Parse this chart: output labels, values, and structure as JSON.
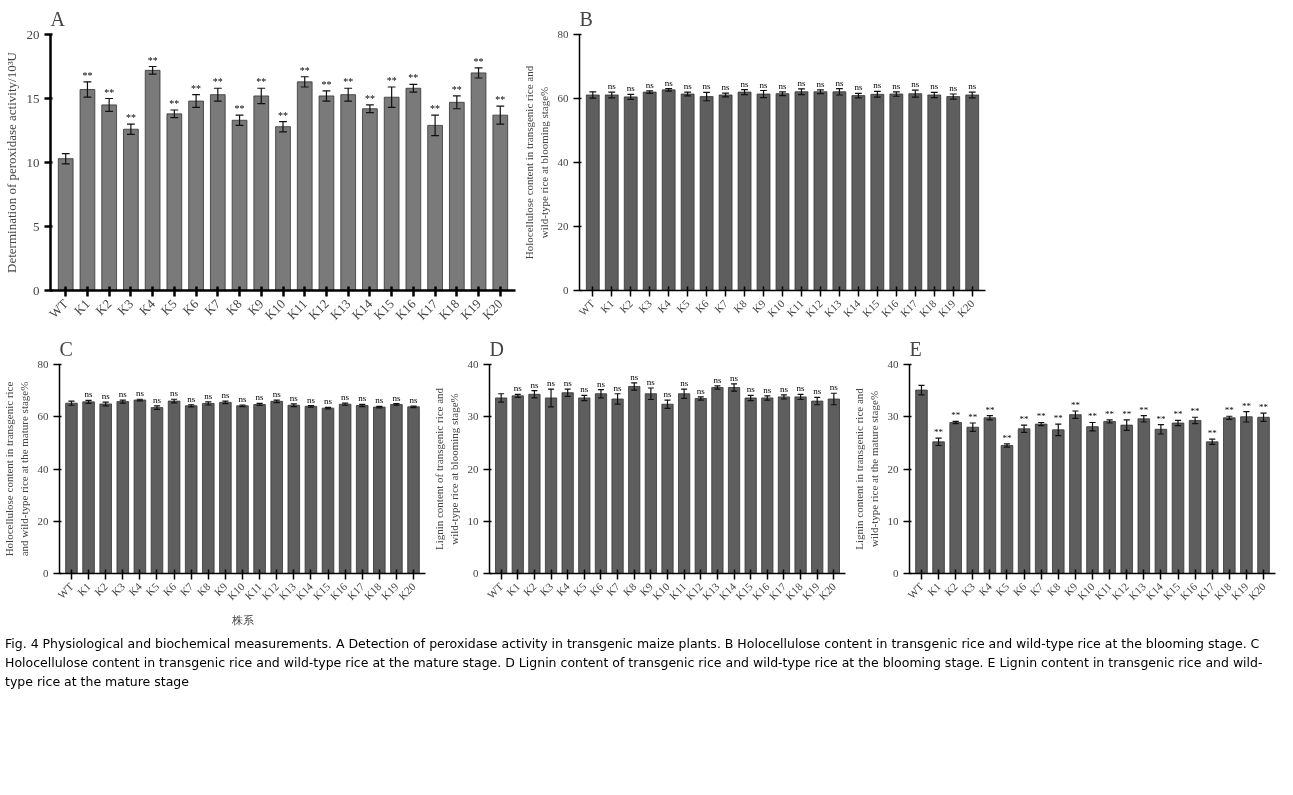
{
  "chart_data": [
    {
      "type": "bar",
      "title": "A",
      "ylabel": "Determination of peroxidase activity/10³U",
      "categories": [
        "WT",
        "K1",
        "K2",
        "K3",
        "K4",
        "K5",
        "K6",
        "K7",
        "K8",
        "K9",
        "K10",
        "K11",
        "K12",
        "K13",
        "K14",
        "K15",
        "K16",
        "K17",
        "K18",
        "K19",
        "K20"
      ],
      "series": [
        {
          "color": "#7a7a7a",
          "values": [
            10.3,
            15.7,
            14.5,
            12.6,
            17.2,
            13.8,
            14.8,
            15.3,
            13.3,
            15.2,
            12.8,
            16.3,
            15.2,
            15.3,
            14.2,
            15.1,
            15.8,
            12.9,
            14.7,
            17.0,
            13.7
          ],
          "errors": [
            0.4,
            0.6,
            0.5,
            0.4,
            0.3,
            0.3,
            0.5,
            0.5,
            0.4,
            0.6,
            0.4,
            0.4,
            0.4,
            0.5,
            0.3,
            0.8,
            0.3,
            0.8,
            0.5,
            0.4,
            0.7
          ]
        }
      ],
      "ylim": [
        0,
        20
      ],
      "yticks": [
        0,
        5,
        10,
        15,
        20
      ],
      "grid": false,
      "annotations": [
        {
          "text": "**",
          "x": "K1",
          "y": 16.3
        },
        {
          "text": "**",
          "x": "K2",
          "y": 15.0
        },
        {
          "text": "**",
          "x": "K3",
          "y": 13.0
        },
        {
          "text": "**",
          "x": "K4",
          "y": 17.5
        },
        {
          "text": "**",
          "x": "K5",
          "y": 14.1
        },
        {
          "text": "**",
          "x": "K6",
          "y": 15.3
        },
        {
          "text": "**",
          "x": "K7",
          "y": 15.8
        },
        {
          "text": "**",
          "x": "K8",
          "y": 13.7
        },
        {
          "text": "**",
          "x": "K9",
          "y": 15.8
        },
        {
          "text": "**",
          "x": "K10",
          "y": 13.2
        },
        {
          "text": "**",
          "x": "K11",
          "y": 16.7
        },
        {
          "text": "**",
          "x": "K12",
          "y": 15.6
        },
        {
          "text": "**",
          "x": "K13",
          "y": 15.8
        },
        {
          "text": "**",
          "x": "K14",
          "y": 14.5
        },
        {
          "text": "**",
          "x": "K15",
          "y": 15.9
        },
        {
          "text": "**",
          "x": "K16",
          "y": 16.1
        },
        {
          "text": "**",
          "x": "K17",
          "y": 13.7
        },
        {
          "text": "**",
          "x": "K18",
          "y": 15.2
        },
        {
          "text": "**",
          "x": "K19",
          "y": 17.4
        },
        {
          "text": "**",
          "x": "K20",
          "y": 14.4
        }
      ]
    },
    {
      "type": "bar",
      "title": "B",
      "ylabel": "Holocellulose content in transgenic rice and\nwild-type rice at blooming stage%",
      "categories": [
        "WT",
        "K1",
        "K2",
        "K3",
        "K4",
        "K5",
        "K6",
        "K7",
        "K8",
        "K9",
        "K10",
        "K11",
        "K12",
        "K13",
        "K14",
        "K15",
        "K16",
        "K17",
        "K18",
        "K19",
        "K20"
      ],
      "series": [
        {
          "color": "#5e5e5e",
          "values": [
            61.1,
            61.1,
            60.5,
            62.0,
            62.7,
            61.4,
            60.6,
            61.1,
            62.0,
            61.4,
            61.5,
            62.1,
            62.1,
            62.1,
            60.9,
            61.3,
            61.4,
            61.5,
            61.1,
            60.6,
            61.1
          ],
          "errors": [
            1.0,
            0.9,
            0.8,
            0.4,
            0.4,
            0.6,
            1.3,
            0.6,
            0.8,
            1.1,
            0.6,
            0.9,
            0.6,
            1.0,
            0.7,
            0.9,
            0.7,
            1.1,
            0.8,
            0.8,
            0.9
          ]
        }
      ],
      "ylim": [
        0,
        80
      ],
      "yticks": [
        0,
        20,
        40,
        60,
        80
      ],
      "grid": false,
      "annotations": [
        {
          "text": "ns",
          "x": "K1",
          "y": 62.0
        },
        {
          "text": "ns",
          "x": "K2",
          "y": 61.3
        },
        {
          "text": "ns",
          "x": "K3",
          "y": 62.4
        },
        {
          "text": "ns",
          "x": "K4",
          "y": 63.1
        },
        {
          "text": "ns",
          "x": "K5",
          "y": 62.0
        },
        {
          "text": "ns",
          "x": "K6",
          "y": 61.9
        },
        {
          "text": "ns",
          "x": "K7",
          "y": 61.7
        },
        {
          "text": "ns",
          "x": "K8",
          "y": 62.8
        },
        {
          "text": "ns",
          "x": "K9",
          "y": 62.5
        },
        {
          "text": "ns",
          "x": "K10",
          "y": 62.1
        },
        {
          "text": "ns",
          "x": "K11",
          "y": 63.0
        },
        {
          "text": "ns",
          "x": "K12",
          "y": 62.7
        },
        {
          "text": "ns",
          "x": "K13",
          "y": 63.1
        },
        {
          "text": "ns",
          "x": "K14",
          "y": 61.6
        },
        {
          "text": "ns",
          "x": "K15",
          "y": 62.2
        },
        {
          "text": "ns",
          "x": "K16",
          "y": 62.1
        },
        {
          "text": "ns",
          "x": "K17",
          "y": 62.6
        },
        {
          "text": "ns",
          "x": "K18",
          "y": 61.9
        },
        {
          "text": "ns",
          "x": "K19",
          "y": 61.4
        },
        {
          "text": "ns",
          "x": "K20",
          "y": 62.0
        }
      ]
    },
    {
      "type": "bar",
      "title": "C",
      "xlabel": "株系",
      "ylabel": "Holocellulose content in transgenic rice\nand wild-type rice at the mature stage%",
      "categories": [
        "WT",
        "K1",
        "K2",
        "K3",
        "K4",
        "K5",
        "K6",
        "K7",
        "K8",
        "K9",
        "K10",
        "K11",
        "K12",
        "K13",
        "K14",
        "K15",
        "K16",
        "K17",
        "K18",
        "K19",
        "K20"
      ],
      "series": [
        {
          "color": "#5e5e5e",
          "values": [
            65.2,
            65.7,
            64.9,
            65.8,
            66.4,
            63.5,
            66.0,
            64.2,
            65.1,
            65.5,
            64.2,
            64.7,
            65.9,
            64.4,
            64.0,
            63.3,
            64.8,
            64.3,
            63.7,
            64.7,
            63.8
          ],
          "errors": [
            0.8,
            0.6,
            0.7,
            0.6,
            0.3,
            0.7,
            0.7,
            0.4,
            0.6,
            0.5,
            0.3,
            0.4,
            0.5,
            0.5,
            0.3,
            0.3,
            0.4,
            0.4,
            0.3,
            0.3,
            0.3
          ]
        }
      ],
      "ylim": [
        0,
        80
      ],
      "yticks": [
        0,
        20,
        40,
        60,
        80
      ],
      "grid": false,
      "annotations": [
        {
          "text": "ns",
          "x": "K1",
          "y": 66.3
        },
        {
          "text": "ns",
          "x": "K2",
          "y": 65.6
        },
        {
          "text": "ns",
          "x": "K3",
          "y": 66.4
        },
        {
          "text": "ns",
          "x": "K4",
          "y": 66.7
        },
        {
          "text": "ns",
          "x": "K5",
          "y": 64.2
        },
        {
          "text": "ns",
          "x": "K6",
          "y": 66.7
        },
        {
          "text": "ns",
          "x": "K7",
          "y": 64.6
        },
        {
          "text": "ns",
          "x": "K8",
          "y": 65.7
        },
        {
          "text": "ns",
          "x": "K9",
          "y": 66.0
        },
        {
          "text": "ns",
          "x": "K10",
          "y": 64.5
        },
        {
          "text": "ns",
          "x": "K11",
          "y": 65.1
        },
        {
          "text": "ns",
          "x": "K12",
          "y": 66.4
        },
        {
          "text": "ns",
          "x": "K13",
          "y": 64.9
        },
        {
          "text": "ns",
          "x": "K14",
          "y": 64.3
        },
        {
          "text": "ns",
          "x": "K15",
          "y": 63.6
        },
        {
          "text": "ns",
          "x": "K16",
          "y": 65.2
        },
        {
          "text": "ns",
          "x": "K17",
          "y": 64.7
        },
        {
          "text": "ns",
          "x": "K18",
          "y": 64.0
        },
        {
          "text": "ns",
          "x": "K19",
          "y": 65.0
        },
        {
          "text": "ns",
          "x": "K20",
          "y": 64.1
        }
      ]
    },
    {
      "type": "bar",
      "title": "D",
      "ylabel": "Lignin content of transgenic rice and\nwild-type rice at blooming stage%",
      "categories": [
        "WT",
        "K1",
        "K2",
        "K3",
        "K4",
        "K5",
        "K6",
        "K7",
        "K8",
        "K9",
        "K10",
        "K11",
        "K12",
        "K13",
        "K14",
        "K15",
        "K16",
        "K17",
        "K18",
        "K19",
        "K20"
      ],
      "series": [
        {
          "color": "#5e5e5e",
          "values": [
            33.6,
            34.0,
            34.3,
            33.6,
            34.6,
            33.6,
            34.4,
            33.4,
            35.8,
            34.4,
            32.4,
            34.4,
            33.5,
            35.6,
            35.6,
            33.6,
            33.6,
            33.8,
            33.8,
            33.0,
            33.4
          ],
          "errors": [
            0.8,
            0.3,
            0.7,
            1.7,
            0.7,
            0.5,
            0.8,
            1.0,
            0.7,
            1.1,
            0.8,
            0.9,
            0.3,
            0.3,
            0.7,
            0.5,
            0.4,
            0.4,
            0.5,
            0.7,
            1.1
          ]
        }
      ],
      "ylim": [
        0,
        40
      ],
      "yticks": [
        0,
        10,
        20,
        30,
        40
      ],
      "grid": false,
      "annotations": [
        {
          "text": "ns",
          "x": "K1",
          "y": 34.3
        },
        {
          "text": "ns",
          "x": "K2",
          "y": 35.0
        },
        {
          "text": "ns",
          "x": "K3",
          "y": 35.3
        },
        {
          "text": "ns",
          "x": "K4",
          "y": 35.3
        },
        {
          "text": "ns",
          "x": "K5",
          "y": 34.1
        },
        {
          "text": "ns",
          "x": "K6",
          "y": 35.2
        },
        {
          "text": "ns",
          "x": "K7",
          "y": 34.4
        },
        {
          "text": "ns",
          "x": "K8",
          "y": 36.5
        },
        {
          "text": "ns",
          "x": "K9",
          "y": 35.5
        },
        {
          "text": "ns",
          "x": "K10",
          "y": 33.2
        },
        {
          "text": "ns",
          "x": "K11",
          "y": 35.3
        },
        {
          "text": "ns",
          "x": "K12",
          "y": 33.8
        },
        {
          "text": "ns",
          "x": "K13",
          "y": 35.9
        },
        {
          "text": "ns",
          "x": "K14",
          "y": 36.3
        },
        {
          "text": "ns",
          "x": "K15",
          "y": 34.1
        },
        {
          "text": "ns",
          "x": "K16",
          "y": 34.0
        },
        {
          "text": "ns",
          "x": "K17",
          "y": 34.2
        },
        {
          "text": "ns",
          "x": "K18",
          "y": 34.3
        },
        {
          "text": "ns",
          "x": "K19",
          "y": 33.7
        },
        {
          "text": "ns",
          "x": "K20",
          "y": 34.5
        }
      ]
    },
    {
      "type": "bar",
      "title": "E",
      "ylabel": "Lignin content in transgenic rice and\nwild-type rice at the mature stage%",
      "categories": [
        "WT",
        "K1",
        "K2",
        "K3",
        "K4",
        "K5",
        "K6",
        "K7",
        "K8",
        "K9",
        "K10",
        "K11",
        "K12",
        "K13",
        "K14",
        "K15",
        "K16",
        "K17",
        "K18",
        "K19",
        "K20"
      ],
      "series": [
        {
          "color": "#5e5e5e",
          "values": [
            35.1,
            25.2,
            28.9,
            28.0,
            29.8,
            24.5,
            27.7,
            28.6,
            27.5,
            30.4,
            28.1,
            29.1,
            28.4,
            29.6,
            27.6,
            28.8,
            29.3,
            25.2,
            29.8,
            30.0,
            29.9
          ],
          "errors": [
            0.9,
            0.7,
            0.2,
            0.8,
            0.4,
            0.3,
            0.7,
            0.3,
            1.1,
            0.7,
            0.8,
            0.3,
            1.0,
            0.6,
            0.9,
            0.5,
            0.6,
            0.5,
            0.3,
            1.0,
            0.8
          ]
        }
      ],
      "ylim": [
        0,
        40
      ],
      "yticks": [
        0,
        10,
        20,
        30,
        40
      ],
      "grid": false,
      "annotations": [
        {
          "text": "**",
          "x": "K1",
          "y": 25.9
        },
        {
          "text": "**",
          "x": "K2",
          "y": 29.1
        },
        {
          "text": "**",
          "x": "K3",
          "y": 28.8
        },
        {
          "text": "**",
          "x": "K4",
          "y": 30.2
        },
        {
          "text": "**",
          "x": "K5",
          "y": 24.8
        },
        {
          "text": "**",
          "x": "K6",
          "y": 28.4
        },
        {
          "text": "**",
          "x": "K7",
          "y": 28.9
        },
        {
          "text": "**",
          "x": "K8",
          "y": 28.6
        },
        {
          "text": "**",
          "x": "K9",
          "y": 31.1
        },
        {
          "text": "**",
          "x": "K10",
          "y": 28.9
        },
        {
          "text": "**",
          "x": "K11",
          "y": 29.4
        },
        {
          "text": "**",
          "x": "K12",
          "y": 29.4
        },
        {
          "text": "**",
          "x": "K13",
          "y": 30.2
        },
        {
          "text": "**",
          "x": "K14",
          "y": 28.5
        },
        {
          "text": "**",
          "x": "K15",
          "y": 29.3
        },
        {
          "text": "**",
          "x": "K16",
          "y": 29.9
        },
        {
          "text": "**",
          "x": "K17",
          "y": 25.7
        },
        {
          "text": "**",
          "x": "K18",
          "y": 30.1
        },
        {
          "text": "**",
          "x": "K19",
          "y": 31.0
        },
        {
          "text": "**",
          "x": "K20",
          "y": 30.7
        },
        "Fig. 4  Physiological and biochemical measurements. A Detection of peroxidase activity in transgenic maize plants. B Holocellulose content in transgenic rice and wild-type rice at the blooming stage. C Holocellulose content in transgenic rice and wild-type rice at the mature stage. D Lignin content of transgenic rice and wild-type rice at the blooming stage. E Lignin content in transgenic rice and wild-type rice at the mature stage"
      ]
    }
  ]
}
